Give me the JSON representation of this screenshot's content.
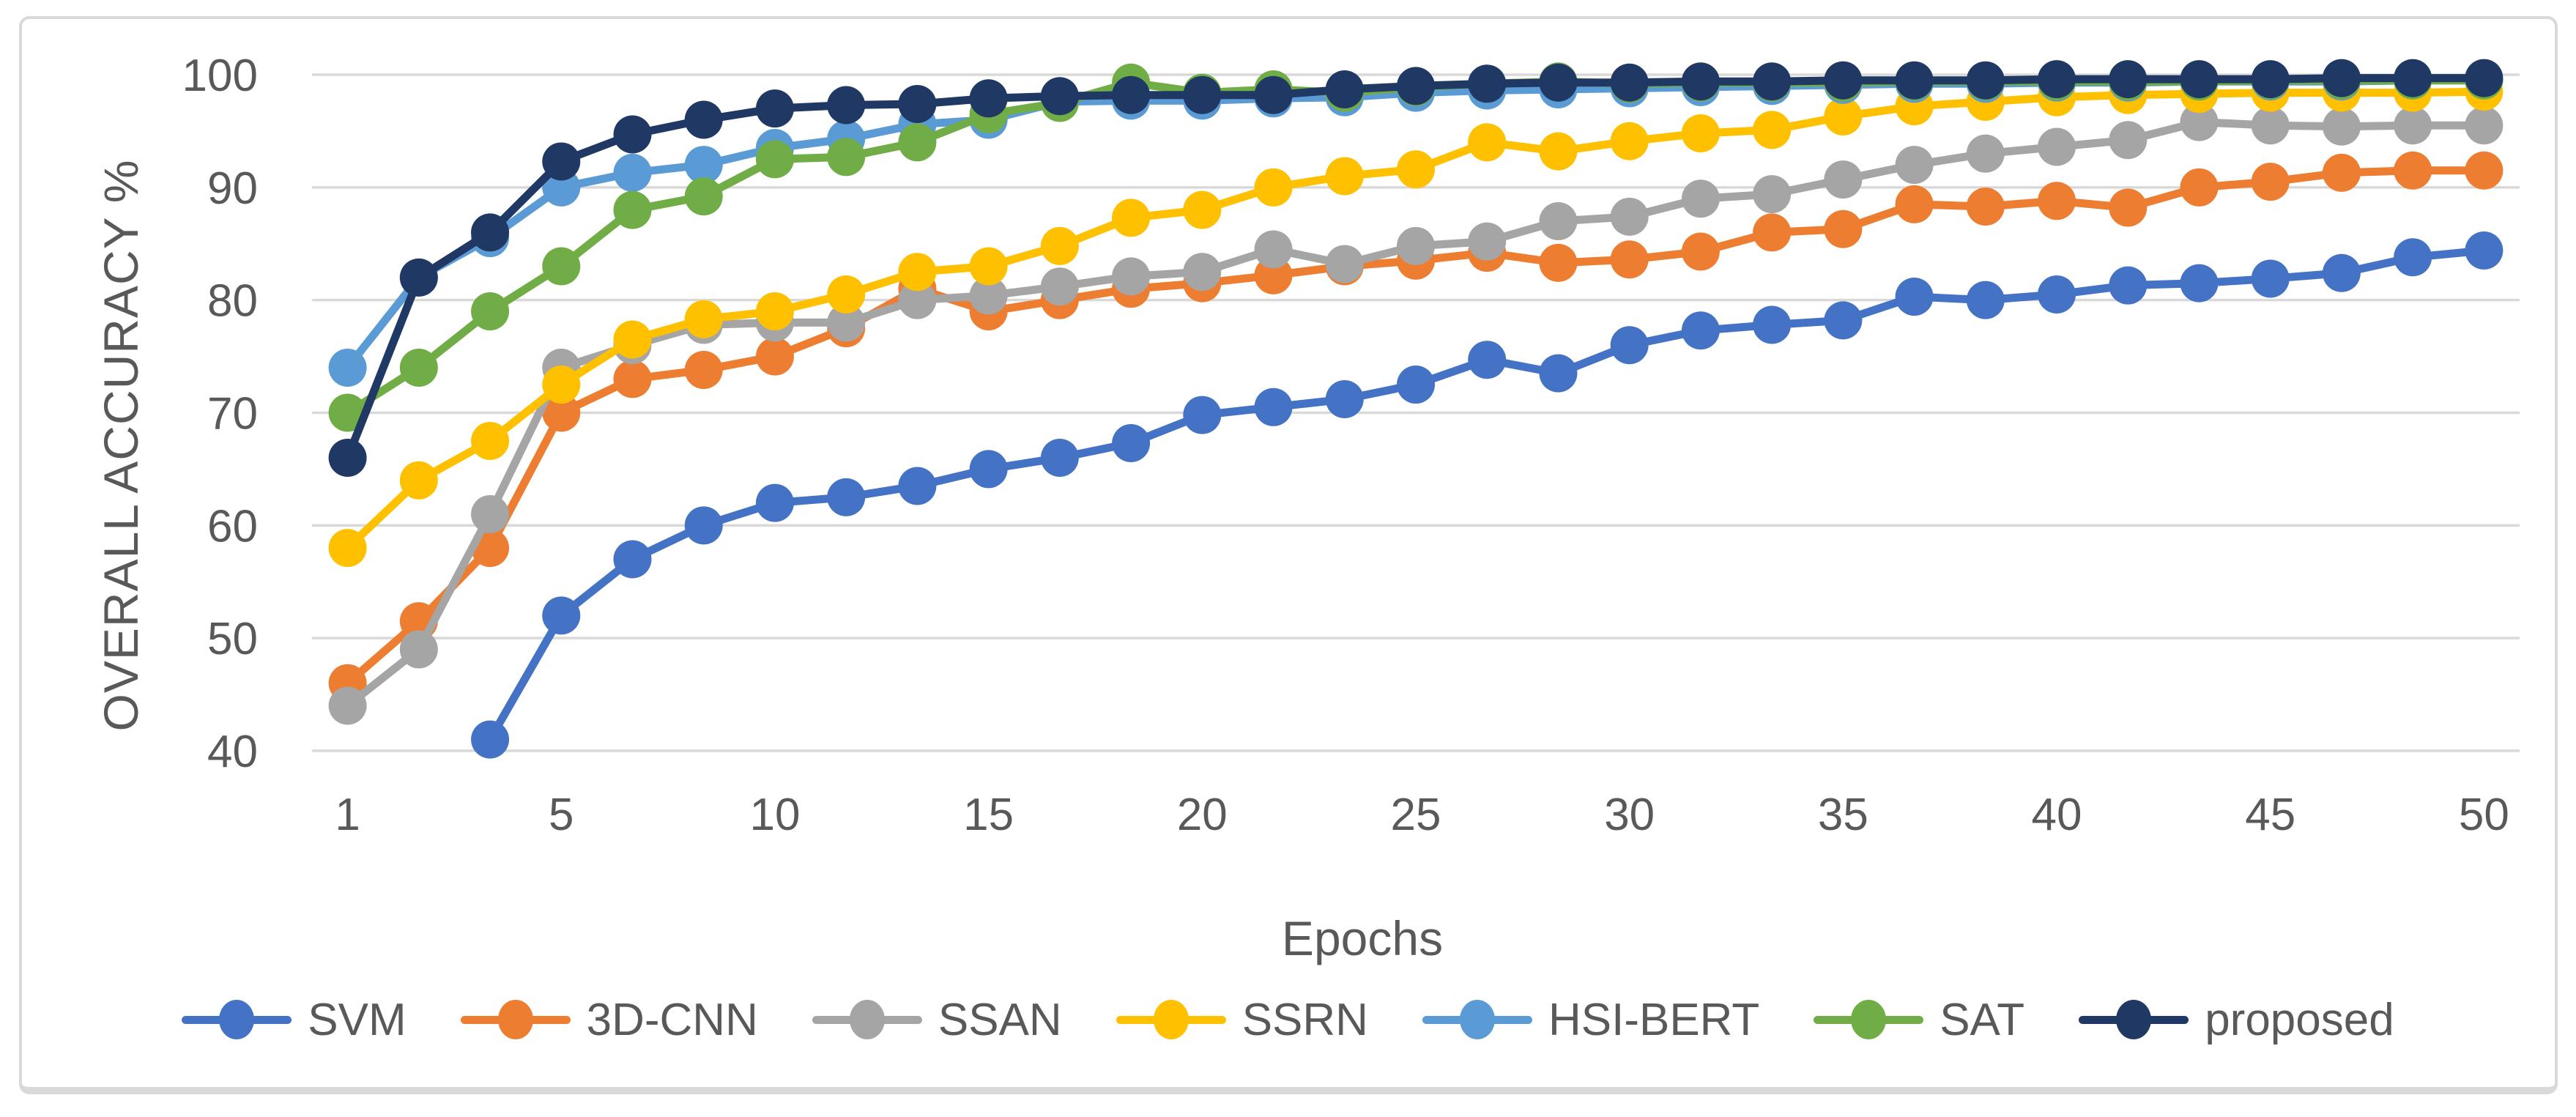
{
  "figure": {
    "background_color": "#FFFFFF",
    "border_color": "#D9D9D9",
    "text_color": "#595959",
    "gridline_color": "#D9D9D9"
  },
  "chart_data": {
    "type": "line",
    "title": "",
    "xlabel": "Epochs",
    "ylabel": "OVERALL ACCURACY %",
    "ylim": [
      40,
      100
    ],
    "y_ticks": [
      100,
      90,
      80,
      70,
      60,
      50,
      40
    ],
    "grid": true,
    "legend_position": "bottom",
    "n_points": 31,
    "x_tick_labels": [
      "1",
      "5",
      "10",
      "15",
      "20",
      "25",
      "30",
      "35",
      "40",
      "45",
      "50"
    ],
    "x_tick_point_indices": [
      0,
      3,
      6,
      9,
      12,
      15,
      18,
      21,
      24,
      27,
      30
    ],
    "x_axis_note": "31 evenly spaced sample points from epoch 1 to epoch 50; tick labels shown every 3rd point",
    "series": [
      {
        "name": "SVM",
        "color": "#4472C4",
        "values": [
          null,
          null,
          41,
          52,
          57,
          60,
          62,
          62.5,
          63.5,
          65,
          66,
          67.3,
          69.8,
          70.5,
          71.2,
          72.5,
          74.7,
          73.5,
          76,
          77.3,
          77.8,
          78.2,
          80.3,
          80,
          80.5,
          81.3,
          81.5,
          81.9,
          82.4,
          83.8,
          84.4
        ]
      },
      {
        "name": "3D-CNN",
        "color": "#ED7D31",
        "values": [
          46,
          51.5,
          58,
          70,
          73,
          73.8,
          75,
          77.5,
          81,
          79,
          80,
          81,
          81.5,
          82.2,
          83,
          83.5,
          84.2,
          83.3,
          83.6,
          84.3,
          86,
          86.3,
          88.5,
          88.3,
          88.8,
          88.2,
          90,
          90.5,
          91.3,
          91.5,
          91.5
        ]
      },
      {
        "name": "SSAN",
        "color": "#A5A5A5",
        "values": [
          44,
          49,
          61,
          74,
          76,
          77.8,
          78,
          78,
          80,
          80.4,
          81.2,
          82.1,
          82.5,
          84.5,
          83.2,
          84.8,
          85.2,
          87,
          87.4,
          89,
          89.4,
          90.7,
          92,
          93,
          93.6,
          94.2,
          95.8,
          95.5,
          95.4,
          95.5,
          95.5
        ]
      },
      {
        "name": "SSRN",
        "color": "#FFC000",
        "values": [
          58,
          64,
          67.5,
          72.5,
          76.5,
          78.3,
          79,
          80.5,
          82.5,
          83,
          84.8,
          87.3,
          88,
          90,
          91,
          91.6,
          94,
          93.2,
          94.1,
          94.8,
          95.1,
          96.3,
          97.2,
          97.6,
          98,
          98.2,
          98.3,
          98.4,
          98.4,
          98.4,
          98.5
        ]
      },
      {
        "name": "HSI-BERT",
        "color": "#5B9BD5",
        "values": [
          74,
          82,
          85.5,
          90,
          91.3,
          92,
          93.5,
          94.3,
          95.6,
          96,
          97.6,
          97.7,
          97.7,
          97.9,
          98,
          98.4,
          98.6,
          98.7,
          98.8,
          98.9,
          99,
          99.1,
          99.2,
          99.2,
          99.3,
          99.3,
          99.4,
          99.4,
          99.4,
          99.5,
          99.5
        ]
      },
      {
        "name": "SAT",
        "color": "#70AD47",
        "values": [
          70,
          74,
          79,
          83,
          88,
          89.2,
          92.5,
          92.7,
          94,
          96.5,
          97.5,
          99.3,
          98.4,
          98.7,
          98.4,
          98.9,
          99.2,
          99.4,
          99.2,
          99.3,
          99.3,
          99.3,
          99.4,
          99.4,
          99.4,
          99.4,
          99.4,
          99.5,
          99.5,
          99.5,
          99.5
        ]
      },
      {
        "name": "proposed",
        "color": "#1F3864",
        "values": [
          66,
          82,
          86,
          92.3,
          94.7,
          96,
          97,
          97.3,
          97.4,
          97.9,
          98.1,
          98.2,
          98.2,
          98.2,
          98.7,
          99,
          99.2,
          99.3,
          99.3,
          99.4,
          99.4,
          99.5,
          99.5,
          99.5,
          99.6,
          99.6,
          99.6,
          99.6,
          99.7,
          99.7,
          99.7
        ]
      }
    ]
  }
}
